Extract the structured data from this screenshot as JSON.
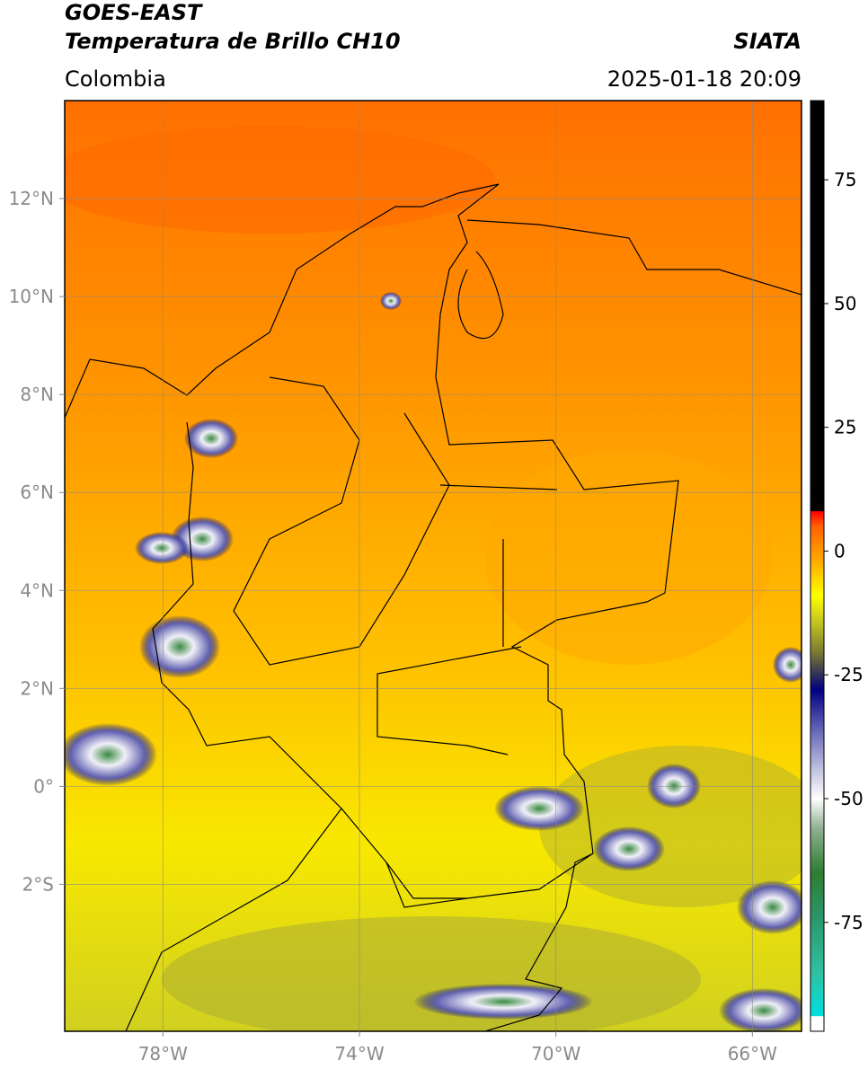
{
  "header": {
    "title_line1": "GOES-EAST",
    "title_line2": "Temperatura de Brillo CH10",
    "agency": "SIATA",
    "region": "Colombia",
    "datetime": "2025-01-18 20:09"
  },
  "map": {
    "xlim": [
      -80,
      -65
    ],
    "ylim": [
      -5,
      14
    ],
    "xticks": [
      {
        "value": -78,
        "label": "78°W"
      },
      {
        "value": -74,
        "label": "74°W"
      },
      {
        "value": -70,
        "label": "70°W"
      },
      {
        "value": -66,
        "label": "66°W"
      }
    ],
    "yticks": [
      {
        "value": 12,
        "label": "12°N"
      },
      {
        "value": 10,
        "label": "10°N"
      },
      {
        "value": 8,
        "label": "8°N"
      },
      {
        "value": 6,
        "label": "6°N"
      },
      {
        "value": 4,
        "label": "4°N"
      },
      {
        "value": 2,
        "label": "2°N"
      },
      {
        "value": 0,
        "label": "0°"
      },
      {
        "value": -2,
        "label": "2°S"
      }
    ],
    "grid": true
  },
  "colorbar": {
    "lim": [
      -97,
      91
    ],
    "ticks": [
      75,
      50,
      25,
      0,
      -25,
      -50,
      -75
    ],
    "colormap": [
      {
        "value": -97,
        "color": "#ffffff"
      },
      {
        "value": -94,
        "color": "#ffffff"
      },
      {
        "value": -93.9,
        "color": "#00e0e0"
      },
      {
        "value": -85,
        "color": "#30c0a0"
      },
      {
        "value": -75,
        "color": "#2a9a70"
      },
      {
        "value": -65,
        "color": "#2e7d32"
      },
      {
        "value": -56,
        "color": "#90b090"
      },
      {
        "value": -50,
        "color": "#ffffff"
      },
      {
        "value": -44,
        "color": "#c0c0e0"
      },
      {
        "value": -35,
        "color": "#5858b0"
      },
      {
        "value": -28,
        "color": "#000080"
      },
      {
        "value": -24,
        "color": "#404050"
      },
      {
        "value": -20,
        "color": "#808030"
      },
      {
        "value": -14,
        "color": "#c8c820"
      },
      {
        "value": -9,
        "color": "#ffff00"
      },
      {
        "value": -2,
        "color": "#ffaa00"
      },
      {
        "value": 5,
        "color": "#ff6000"
      },
      {
        "value": 8,
        "color": "#ff0000"
      },
      {
        "value": 8.1,
        "color": "#000000"
      },
      {
        "value": 91,
        "color": "#000000"
      }
    ]
  }
}
